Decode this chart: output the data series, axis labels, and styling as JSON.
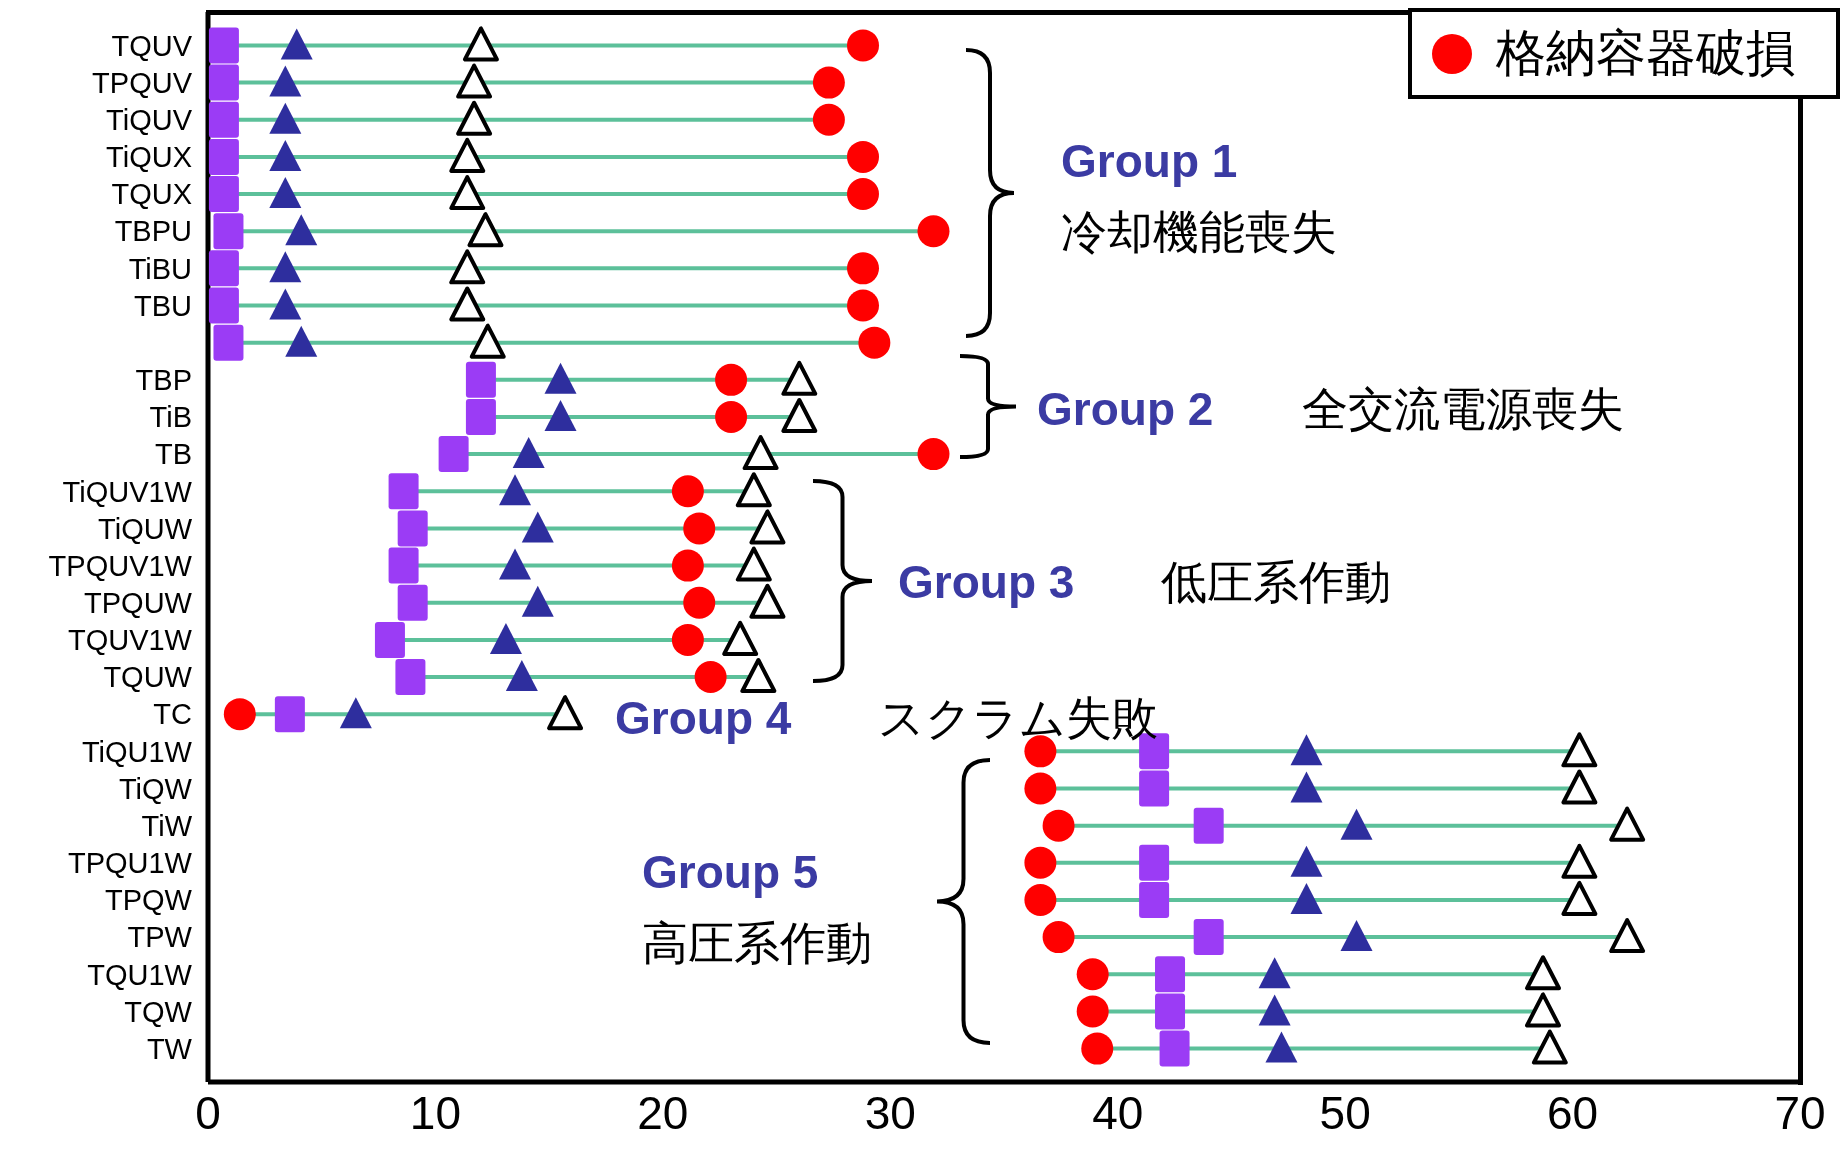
{
  "chart_data": {
    "type": "scatter",
    "orientation": "horizontal",
    "categories": [
      "TQUV",
      "TPQUV",
      "TiQUV",
      "TiQUX",
      "TQUX",
      "TBPU",
      "TiBU",
      "TBU",
      null,
      "TBP",
      "TiB",
      "TB",
      "TiQUV1W",
      "TiQUW",
      "TPQUV1W",
      "TPQUW",
      "TQUV1W",
      "TQUW",
      "TC",
      "TiQU1W",
      "TiQW",
      "TiW",
      "TPQU1W",
      "TPQW",
      "TPW",
      "TQU1W",
      "TQW",
      "TW"
    ],
    "series": [
      {
        "color": "#9b3cf5",
        "marker": "square",
        "values": [
          0.7,
          0.7,
          0.7,
          0.7,
          0.7,
          0.9,
          0.7,
          0.7,
          0.9,
          12.0,
          12.0,
          10.8,
          8.6,
          9.0,
          8.6,
          9.0,
          8.0,
          8.9,
          3.6,
          41.6,
          41.6,
          44.0,
          41.6,
          41.6,
          44.0,
          42.3,
          42.3,
          42.5
        ]
      },
      {
        "color": "#2e2e9e",
        "marker": "triangle",
        "values": [
          3.9,
          3.4,
          3.4,
          3.4,
          3.4,
          4.1,
          3.4,
          3.4,
          4.1,
          15.5,
          15.5,
          14.1,
          13.5,
          14.5,
          13.5,
          14.5,
          13.1,
          13.8,
          6.5,
          48.3,
          48.3,
          50.5,
          48.3,
          48.3,
          50.5,
          46.9,
          46.9,
          47.2
        ]
      },
      {
        "color": "#000000",
        "marker": "triangle",
        "values": [
          12.0,
          11.7,
          11.7,
          11.4,
          11.4,
          12.2,
          11.4,
          11.4,
          12.3,
          26.0,
          26.0,
          24.3,
          24.0,
          24.6,
          24.0,
          24.6,
          23.4,
          24.2,
          15.7,
          60.3,
          60.3,
          62.4,
          60.3,
          60.3,
          62.4,
          58.7,
          58.7,
          59.0
        ]
      },
      {
        "name": "格納容器破損",
        "color": "#ff0000",
        "marker": "circle",
        "values": [
          28.8,
          27.3,
          27.3,
          28.8,
          28.8,
          31.9,
          28.8,
          28.8,
          29.3,
          23.0,
          23.0,
          31.9,
          21.1,
          21.6,
          21.1,
          21.6,
          21.1,
          22.1,
          1.4,
          36.6,
          36.6,
          37.4,
          36.6,
          36.6,
          37.4,
          38.9,
          38.9,
          39.1
        ]
      }
    ],
    "xlim": [
      0,
      70
    ],
    "xticks": [
      0,
      10,
      20,
      30,
      40,
      50,
      60,
      70
    ],
    "legend": "top right",
    "annotations": [
      "Group 1",
      "冷却機能喪失",
      "Group 2",
      "全交流電源喪失",
      "Group 3",
      "低圧系作動",
      "Group 4",
      "スクラム失敗",
      "Group 5",
      "高圧系作動"
    ]
  }
}
